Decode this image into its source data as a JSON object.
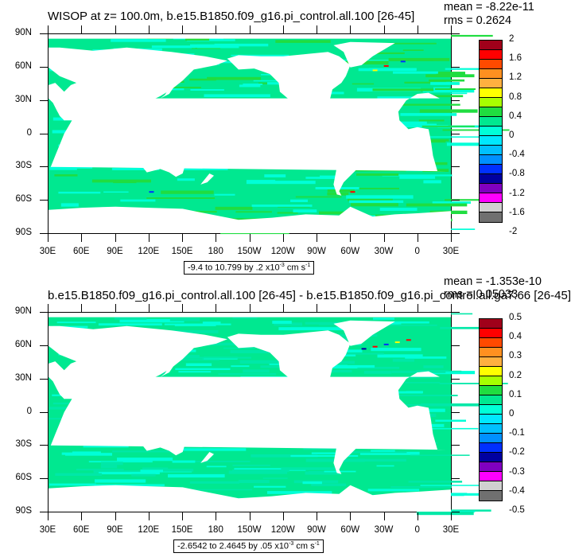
{
  "chart_data": [
    {
      "type": "heatmap",
      "title": "WISOP at z= 100.0m, b.e15.B1850.f09_g16.pi_control.all.100 [26-45]",
      "mean_label": "mean = -8.22e-11",
      "rms_label": "rms = 0.2624",
      "x_ticks": [
        "30E",
        "60E",
        "90E",
        "120E",
        "150E",
        "180",
        "150W",
        "120W",
        "90W",
        "60W",
        "30W",
        "0",
        "30E"
      ],
      "y_ticks": [
        "90N",
        "60N",
        "30N",
        "0",
        "30S",
        "60S",
        "90S"
      ],
      "range_text": "-9.4 to 10.799 by .2 x10",
      "range_exp": "-3",
      "range_unit": " cm s",
      "range_unit_exp": "-1",
      "colorbar_labels": [
        "2",
        "1.6",
        "1.2",
        "0.8",
        "0.4",
        "0",
        "-0.4",
        "-0.8",
        "-1.2",
        "-1.6",
        "-2"
      ],
      "colorbar_colors": [
        "#a0001a",
        "#ff0000",
        "#ff4a00",
        "#ff9020",
        "#ffb040",
        "#ffff00",
        "#a8ff00",
        "#20dd40",
        "#00e890",
        "#00ffd8",
        "#00e8ff",
        "#00c0ff",
        "#0090ff",
        "#0030ff",
        "#0000a0",
        "#8000c0",
        "#ff00ff",
        "#d0d0d0",
        "#707070"
      ]
    },
    {
      "type": "heatmap",
      "title": "b.e15.B1850.f09_g16.pi_control.all.100 [26-45] - b.e15.B1850.f09_g16.pi_control.all.ga7.66 [26-45]",
      "mean_label": "mean = -1.353e-10",
      "rms_label": "rms = 0.05033",
      "x_ticks": [
        "30E",
        "60E",
        "90E",
        "120E",
        "150E",
        "180",
        "150W",
        "120W",
        "90W",
        "60W",
        "30W",
        "0",
        "30E"
      ],
      "y_ticks": [
        "90N",
        "60N",
        "30N",
        "0",
        "30S",
        "60S",
        "90S"
      ],
      "range_text": "-2.6542 to 2.4645 by .05 x10",
      "range_exp": "-3",
      "range_unit": " cm s",
      "range_unit_exp": "-1",
      "colorbar_labels": [
        "0.5",
        "0.4",
        "0.3",
        "0.2",
        "0.1",
        "0",
        "-0.1",
        "-0.2",
        "-0.3",
        "-0.4",
        "-0.5"
      ],
      "colorbar_colors": [
        "#a0001a",
        "#ff0000",
        "#ff4a00",
        "#ff9020",
        "#ffb040",
        "#ffff00",
        "#a8ff00",
        "#20dd40",
        "#00e890",
        "#00ffd8",
        "#00e8ff",
        "#00c0ff",
        "#0090ff",
        "#0030ff",
        "#0000a0",
        "#8000c0",
        "#ff00ff",
        "#d0d0d0",
        "#707070"
      ]
    }
  ]
}
